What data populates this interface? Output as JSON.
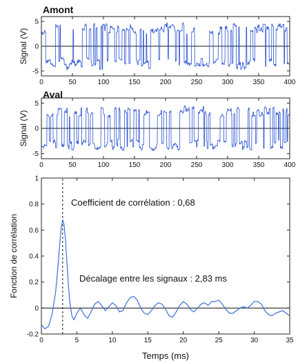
{
  "chart_data": [
    {
      "type": "line",
      "id": "amont",
      "title": "Amont",
      "ylabel": "Signal (V)",
      "xlim": [
        0,
        400
      ],
      "ylim": [
        -6,
        6
      ],
      "xticks": [
        "0",
        "50",
        "100",
        "150",
        "200",
        "250",
        "300",
        "350",
        "400"
      ],
      "yticks": [
        "5",
        "0",
        "-5"
      ],
      "signal_amplitude": 4.5,
      "sample_count": 400
    },
    {
      "type": "line",
      "id": "aval",
      "title": "Aval",
      "ylabel": "Signal (V)",
      "xlim": [
        0,
        400
      ],
      "ylim": [
        -6,
        6
      ],
      "xticks": [
        "0",
        "50",
        "100",
        "150",
        "200",
        "250",
        "300",
        "350",
        "400"
      ],
      "yticks": [
        "5",
        "0",
        "-5"
      ],
      "signal_amplitude": 4.3,
      "sample_count": 400
    },
    {
      "type": "line",
      "id": "correlation",
      "xlabel": "Temps (ms)",
      "ylabel": "Fonction de corrélation",
      "xlim": [
        0,
        35
      ],
      "ylim": [
        -0.2,
        1
      ],
      "xticks": [
        "0",
        "5",
        "10",
        "15",
        "20",
        "25",
        "30",
        "35"
      ],
      "yticks": [
        "1",
        "0.8",
        "0.6",
        "0.4",
        "0.2",
        "0",
        "-0.2"
      ],
      "peak_x": 3.0,
      "annotations": [
        "Coefficient de corrélation : 0,68",
        "Décalage entre les signaux : 2,83 ms"
      ],
      "series": [
        {
          "x": [
            0,
            0.5,
            1,
            1.5,
            2,
            2.3,
            2.6,
            2.8,
            3.0,
            3.2,
            3.4,
            3.6,
            3.8,
            4.0,
            4.3,
            4.6,
            5.0,
            5.5,
            6,
            6.5,
            7,
            7.5,
            8,
            8.5,
            9,
            9.5,
            10,
            10.5,
            11,
            11.5,
            12,
            12.5,
            13,
            13.5,
            14,
            14.5,
            15,
            15.5,
            16,
            16.5,
            17,
            17.5,
            18,
            18.5,
            19,
            19.5,
            20,
            20.5,
            21,
            21.5,
            22,
            22.5,
            23,
            23.5,
            24,
            24.5,
            25,
            25.5,
            26,
            26.5,
            27,
            27.5,
            28,
            28.5,
            29,
            29.5,
            30,
            30.5,
            31,
            31.5,
            32,
            32.5,
            33,
            33.5,
            34,
            34.5,
            35
          ],
          "y": [
            -0.13,
            -0.16,
            -0.14,
            -0.05,
            0.12,
            0.3,
            0.5,
            0.62,
            0.68,
            0.64,
            0.52,
            0.35,
            0.18,
            0.05,
            -0.06,
            -0.09,
            -0.04,
            0.0,
            -0.05,
            -0.08,
            -0.03,
            0.03,
            0.05,
            0.02,
            -0.02,
            0.01,
            0.04,
            0.02,
            -0.03,
            -0.02,
            0.04,
            0.08,
            0.09,
            0.06,
            0.0,
            -0.04,
            -0.05,
            -0.02,
            0.02,
            0.04,
            0.03,
            -0.01,
            -0.06,
            -0.07,
            -0.03,
            0.02,
            0.05,
            0.03,
            -0.01,
            -0.03,
            0.0,
            0.03,
            0.04,
            0.02,
            0.05,
            0.05,
            0.06,
            0.03,
            -0.01,
            -0.04,
            -0.04,
            -0.02,
            0.0,
            0.01,
            0.0,
            0.02,
            0.05,
            0.05,
            0.03,
            -0.02,
            -0.05,
            -0.06,
            -0.04,
            -0.03,
            -0.02,
            -0.04,
            -0.06
          ]
        }
      ]
    }
  ]
}
